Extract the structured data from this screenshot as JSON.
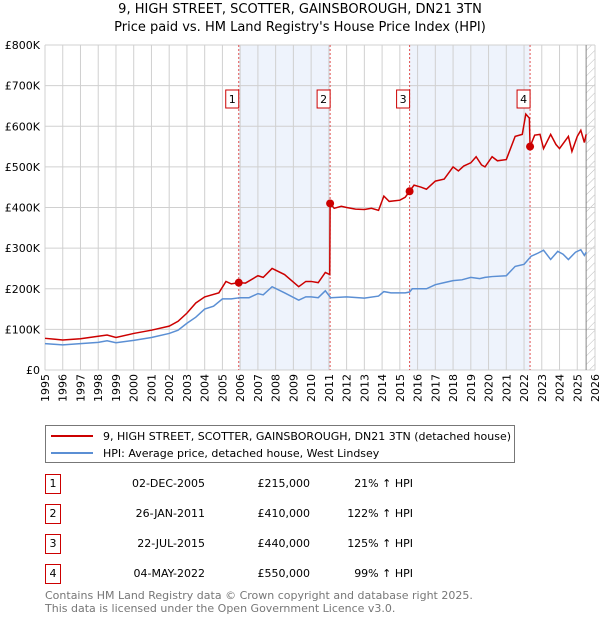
{
  "chart_data": {
    "type": "line",
    "title": "9, HIGH STREET, SCOTTER, GAINSBOROUGH, DN21 3TN",
    "subtitle": "Price paid vs. HM Land Registry's House Price Index (HPI)",
    "xlim": [
      1995,
      2026
    ],
    "ylim": [
      0,
      800000
    ],
    "y_ticks": [
      {
        "v": 0,
        "label": "£0"
      },
      {
        "v": 100000,
        "label": "£100K"
      },
      {
        "v": 200000,
        "label": "£200K"
      },
      {
        "v": 300000,
        "label": "£300K"
      },
      {
        "v": 400000,
        "label": "£400K"
      },
      {
        "v": 500000,
        "label": "£500K"
      },
      {
        "v": 600000,
        "label": "£600K"
      },
      {
        "v": 700000,
        "label": "£700K"
      },
      {
        "v": 800000,
        "label": "£800K"
      }
    ],
    "x_ticks": [
      1995,
      1996,
      1997,
      1998,
      1999,
      2000,
      2001,
      2002,
      2003,
      2004,
      2005,
      2006,
      2007,
      2008,
      2009,
      2010,
      2011,
      2012,
      2013,
      2014,
      2015,
      2016,
      2017,
      2018,
      2019,
      2020,
      2021,
      2022,
      2023,
      2024,
      2025,
      2026
    ],
    "grid": true,
    "shaded_ranges": [
      [
        2005.92,
        2011.07
      ],
      [
        2015.55,
        2022.34
      ]
    ],
    "hatched_from": 2025.5,
    "series": [
      {
        "name": "9, HIGH STREET, SCOTTER, GAINSBOROUGH, DN21 3TN (detached house)",
        "color": "#cc0000",
        "x": [
          1995,
          1995.5,
          1996,
          1997,
          1998,
          1998.5,
          1999,
          2000,
          2001,
          2002,
          2002.5,
          2003,
          2003.5,
          2004,
          2004.8,
          2005.2,
          2005.5,
          2005.92,
          2006.3,
          2007,
          2007.3,
          2007.8,
          2008.5,
          2009.3,
          2009.7,
          2010,
          2010.4,
          2010.8,
          2011.05,
          2011.07,
          2011.3,
          2011.7,
          2012,
          2012.5,
          2013,
          2013.4,
          2013.8,
          2014.1,
          2014.4,
          2015,
          2015.3,
          2015.55,
          2015.8,
          2016.2,
          2016.5,
          2017,
          2017.5,
          2018,
          2018.3,
          2018.6,
          2019,
          2019.3,
          2019.6,
          2019.8,
          2020.2,
          2020.5,
          2021,
          2021.5,
          2021.9,
          2022.1,
          2022.3,
          2022.34,
          2022.6,
          2022.9,
          2023.1,
          2023.5,
          2023.8,
          2024,
          2024.5,
          2024.7,
          2025,
          2025.2,
          2025.4,
          2025.5
        ],
        "y": [
          78000,
          76000,
          74000,
          77000,
          83000,
          86000,
          80000,
          90000,
          98000,
          108000,
          120000,
          140000,
          165000,
          180000,
          190000,
          218000,
          212000,
          215000,
          214000,
          232000,
          228000,
          250000,
          235000,
          205000,
          218000,
          218000,
          215000,
          240000,
          235000,
          410000,
          398000,
          403000,
          400000,
          396000,
          395000,
          398000,
          393000,
          428000,
          415000,
          418000,
          425000,
          440000,
          455000,
          450000,
          445000,
          465000,
          470000,
          500000,
          490000,
          502000,
          510000,
          525000,
          505000,
          500000,
          525000,
          515000,
          518000,
          575000,
          580000,
          630000,
          620000,
          550000,
          578000,
          580000,
          545000,
          580000,
          555000,
          545000,
          575000,
          538000,
          575000,
          590000,
          560000,
          580000
        ]
      },
      {
        "name": "HPI: Average price, detached house, West Lindsey",
        "color": "#5b8fd4",
        "x": [
          1995,
          1996,
          1997,
          1998,
          1998.5,
          1999,
          2000,
          2001,
          2002,
          2002.5,
          2003,
          2003.5,
          2004,
          2004.5,
          2005,
          2005.5,
          2006,
          2006.5,
          2007,
          2007.3,
          2007.8,
          2008.5,
          2009.3,
          2009.7,
          2010,
          2010.4,
          2010.8,
          2011.1,
          2012,
          2013,
          2013.8,
          2014.1,
          2014.5,
          2015.3,
          2015.55,
          2015.7,
          2016.5,
          2017,
          2017.5,
          2018,
          2018.5,
          2019,
          2019.5,
          2019.8,
          2020.2,
          2021,
          2021.5,
          2022,
          2022.4,
          2022.8,
          2023.1,
          2023.5,
          2023.9,
          2024.2,
          2024.5,
          2024.9,
          2025.2,
          2025.4,
          2025.5
        ],
        "y": [
          65000,
          62000,
          65000,
          68000,
          72000,
          67000,
          73000,
          80000,
          90000,
          98000,
          115000,
          130000,
          150000,
          157000,
          175000,
          175000,
          178000,
          178000,
          188000,
          185000,
          205000,
          190000,
          172000,
          180000,
          180000,
          178000,
          195000,
          178000,
          180000,
          177000,
          182000,
          193000,
          190000,
          190000,
          192000,
          200000,
          200000,
          210000,
          215000,
          220000,
          222000,
          228000,
          225000,
          228000,
          230000,
          232000,
          255000,
          260000,
          280000,
          288000,
          295000,
          272000,
          292000,
          285000,
          272000,
          290000,
          296000,
          282000,
          290000
        ]
      }
    ],
    "transactions": [
      {
        "n": "1",
        "x": 2005.92,
        "date": "02-DEC-2005",
        "price": 215000,
        "price_label": "£215,000",
        "hpi": "21% ↑ HPI"
      },
      {
        "n": "2",
        "x": 2011.07,
        "date": "26-JAN-2011",
        "price": 410000,
        "price_label": "£410,000",
        "hpi": "122% ↑ HPI"
      },
      {
        "n": "3",
        "x": 2015.55,
        "date": "22-JUL-2015",
        "price": 440000,
        "price_label": "£440,000",
        "hpi": "125% ↑ HPI"
      },
      {
        "n": "4",
        "x": 2022.34,
        "date": "04-MAY-2022",
        "price": 550000,
        "price_label": "£550,000",
        "hpi": "99% ↑ HPI"
      }
    ]
  },
  "legend": {
    "red": "9, HIGH STREET, SCOTTER, GAINSBOROUGH, DN21 3TN (detached house)",
    "blue": "HPI: Average price, detached house, West Lindsey"
  },
  "footer": {
    "line1": "Contains HM Land Registry data © Crown copyright and database right 2025.",
    "line2": "This data is licensed under the Open Government Licence v3.0."
  }
}
